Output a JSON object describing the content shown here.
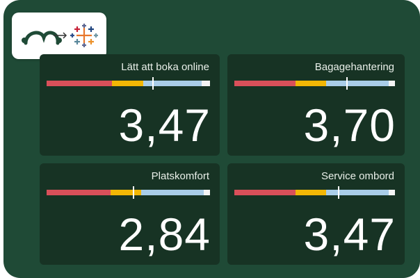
{
  "segment_colors": [
    "#d9505a",
    "#f2b705",
    "#a9cde8",
    "#f4f4f4"
  ],
  "cards": [
    {
      "title": "Lätt att boka online",
      "value": "3,47",
      "segments": [
        40,
        19,
        36,
        5
      ],
      "marker": 65
    },
    {
      "title": "Bagagehantering",
      "value": "3,70",
      "segments": [
        38,
        19,
        39,
        4
      ],
      "marker": 70
    },
    {
      "title": "Platskomfort",
      "value": "2,84",
      "segments": [
        39,
        19,
        38,
        4
      ],
      "marker": 53
    },
    {
      "title": "Service ombord",
      "value": "3,47",
      "segments": [
        38,
        19,
        39,
        4
      ],
      "marker": 65
    }
  ]
}
